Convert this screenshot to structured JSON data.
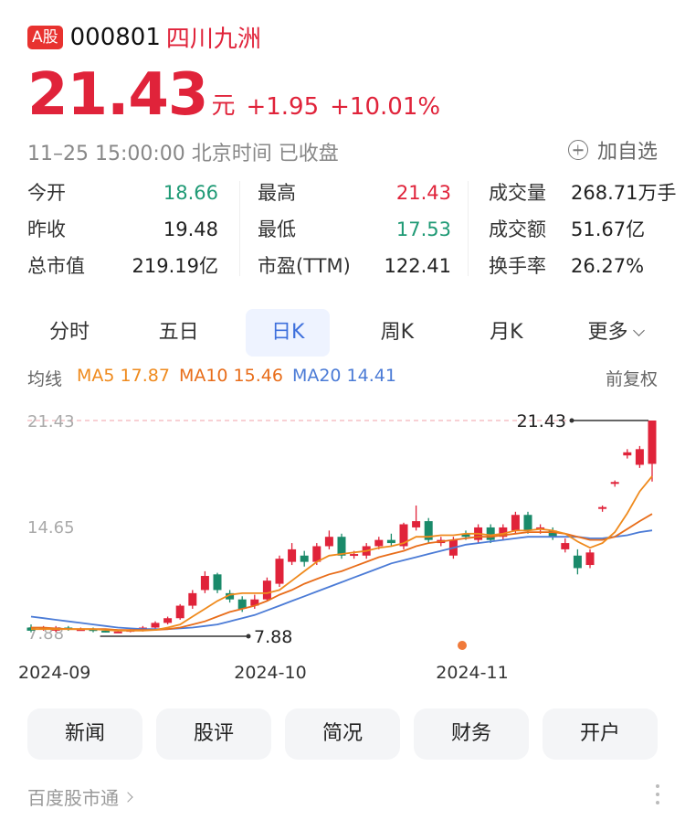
{
  "header": {
    "market_badge": "A股",
    "code": "000801",
    "name": "四川九洲"
  },
  "quote": {
    "price": "21.43",
    "unit": "元",
    "change": "+1.95",
    "change_pct": "+10.01%"
  },
  "status": {
    "text": "11–25 15:00:00 北京时间 已收盘",
    "add_label": "加自选"
  },
  "stats": [
    {
      "label": "今开",
      "value": "18.66",
      "tone": "green"
    },
    {
      "label": "最高",
      "value": "21.43",
      "tone": "red"
    },
    {
      "label": "成交量",
      "value": "268.71万手",
      "tone": ""
    },
    {
      "label": "昨收",
      "value": "19.48",
      "tone": ""
    },
    {
      "label": "最低",
      "value": "17.53",
      "tone": "green"
    },
    {
      "label": "成交额",
      "value": "51.67亿",
      "tone": ""
    },
    {
      "label": "总市值",
      "value": "219.19亿",
      "tone": ""
    },
    {
      "label": "市盈(TTM)",
      "value": "122.41",
      "tone": ""
    },
    {
      "label": "换手率",
      "value": "26.27%",
      "tone": ""
    }
  ],
  "tabs": [
    "分时",
    "五日",
    "日K",
    "周K",
    "月K",
    "更多"
  ],
  "active_tab": "日K",
  "ma": {
    "label": "均线",
    "ma5": "MA5 17.87",
    "ma10": "MA10 15.46",
    "ma20": "MA20 14.41",
    "adjust": "前复权"
  },
  "chart_data": {
    "type": "candlestick",
    "y_labels": [
      "21.43",
      "14.65",
      "7.88"
    ],
    "x_labels": [
      "2024-09",
      "2024-10",
      "2024-11"
    ],
    "high_marker": "21.43",
    "low_marker": "7.88",
    "colors": {
      "up": "#e0233a",
      "down": "#1a8a6a",
      "ma5": "#ef8a1d",
      "ma10": "#e86d1a",
      "ma20": "#4b7bd6"
    },
    "candles": [
      {
        "o": 8.2,
        "c": 8.0,
        "h": 8.4,
        "l": 7.9
      },
      {
        "o": 8.1,
        "c": 8.2,
        "h": 8.3,
        "l": 8.0
      },
      {
        "o": 8.0,
        "c": 8.2,
        "h": 8.3,
        "l": 7.9
      },
      {
        "o": 8.2,
        "c": 8.1,
        "h": 8.3,
        "l": 8.0
      },
      {
        "o": 8.1,
        "c": 8.1,
        "h": 8.2,
        "l": 8.0
      },
      {
        "o": 8.1,
        "c": 8.0,
        "h": 8.2,
        "l": 7.9
      },
      {
        "o": 8.0,
        "c": 7.9,
        "h": 8.1,
        "l": 7.88
      },
      {
        "o": 7.95,
        "c": 7.95,
        "h": 8.0,
        "l": 7.88
      },
      {
        "o": 7.95,
        "c": 8.05,
        "h": 8.1,
        "l": 7.9
      },
      {
        "o": 8.0,
        "c": 8.2,
        "h": 8.3,
        "l": 7.95
      },
      {
        "o": 8.2,
        "c": 8.5,
        "h": 8.6,
        "l": 8.1
      },
      {
        "o": 8.5,
        "c": 8.8,
        "h": 8.9,
        "l": 8.4
      },
      {
        "o": 8.8,
        "c": 9.6,
        "h": 9.7,
        "l": 8.7
      },
      {
        "o": 9.6,
        "c": 10.4,
        "h": 10.6,
        "l": 9.4
      },
      {
        "o": 10.6,
        "c": 11.5,
        "h": 11.8,
        "l": 10.4
      },
      {
        "o": 11.6,
        "c": 10.6,
        "h": 11.7,
        "l": 10.4
      },
      {
        "o": 10.4,
        "c": 10.0,
        "h": 10.6,
        "l": 9.8
      },
      {
        "o": 10.0,
        "c": 9.4,
        "h": 10.2,
        "l": 9.2
      },
      {
        "o": 9.6,
        "c": 10.0,
        "h": 10.3,
        "l": 9.4
      },
      {
        "o": 10.0,
        "c": 11.2,
        "h": 11.4,
        "l": 9.9
      },
      {
        "o": 11.0,
        "c": 12.6,
        "h": 12.8,
        "l": 10.8
      },
      {
        "o": 12.4,
        "c": 13.2,
        "h": 13.6,
        "l": 12.2
      },
      {
        "o": 12.8,
        "c": 12.4,
        "h": 13.1,
        "l": 12.1
      },
      {
        "o": 12.4,
        "c": 13.4,
        "h": 13.6,
        "l": 12.2
      },
      {
        "o": 13.4,
        "c": 14.0,
        "h": 14.4,
        "l": 13.2
      },
      {
        "o": 14.0,
        "c": 12.8,
        "h": 14.2,
        "l": 12.6
      },
      {
        "o": 12.8,
        "c": 12.9,
        "h": 13.1,
        "l": 12.6
      },
      {
        "o": 12.8,
        "c": 13.4,
        "h": 13.6,
        "l": 12.6
      },
      {
        "o": 13.4,
        "c": 13.8,
        "h": 14.0,
        "l": 13.2
      },
      {
        "o": 13.8,
        "c": 13.6,
        "h": 14.2,
        "l": 13.4
      },
      {
        "o": 13.4,
        "c": 14.8,
        "h": 14.9,
        "l": 13.2
      },
      {
        "o": 14.6,
        "c": 15.0,
        "h": 16.0,
        "l": 14.4
      },
      {
        "o": 15.0,
        "c": 13.8,
        "h": 15.2,
        "l": 13.6
      },
      {
        "o": 13.6,
        "c": 13.8,
        "h": 14.0,
        "l": 13.4
      },
      {
        "o": 12.8,
        "c": 13.8,
        "h": 14.0,
        "l": 12.6
      },
      {
        "o": 14.2,
        "c": 14.0,
        "h": 14.4,
        "l": 13.8
      },
      {
        "o": 13.8,
        "c": 14.6,
        "h": 14.8,
        "l": 13.6
      },
      {
        "o": 14.6,
        "c": 13.8,
        "h": 14.8,
        "l": 13.6
      },
      {
        "o": 14.0,
        "c": 14.6,
        "h": 14.8,
        "l": 13.8
      },
      {
        "o": 14.4,
        "c": 15.4,
        "h": 15.6,
        "l": 14.2
      },
      {
        "o": 15.4,
        "c": 14.4,
        "h": 15.6,
        "l": 14.2
      },
      {
        "o": 14.6,
        "c": 14.6,
        "h": 14.8,
        "l": 14.2
      },
      {
        "o": 14.4,
        "c": 14.0,
        "h": 14.6,
        "l": 13.8
      },
      {
        "o": 13.2,
        "c": 13.6,
        "h": 13.9,
        "l": 13.0
      },
      {
        "o": 12.8,
        "c": 12.0,
        "h": 13.2,
        "l": 11.6
      },
      {
        "o": 12.2,
        "c": 13.0,
        "h": 13.2,
        "l": 12.0
      },
      {
        "o": 15.8,
        "c": 15.9,
        "h": 16.0,
        "l": 15.6
      },
      {
        "o": 17.4,
        "c": 17.5,
        "h": 17.6,
        "l": 17.2
      },
      {
        "o": 19.2,
        "c": 19.4,
        "h": 19.6,
        "l": 19.0
      },
      {
        "o": 18.6,
        "c": 19.6,
        "h": 19.8,
        "l": 18.4
      },
      {
        "o": 18.66,
        "c": 21.43,
        "h": 21.43,
        "l": 17.53
      }
    ],
    "ma5": [
      8.1,
      8.1,
      8.1,
      8.1,
      8.1,
      8.1,
      8.05,
      8.0,
      8.0,
      8.0,
      8.05,
      8.2,
      8.4,
      8.9,
      9.4,
      9.9,
      10.3,
      10.4,
      10.4,
      10.4,
      10.6,
      11.2,
      11.8,
      12.4,
      12.8,
      12.9,
      13.0,
      13.1,
      13.3,
      13.4,
      13.6,
      14.0,
      14.0,
      14.1,
      14.1,
      14.2,
      14.2,
      14.1,
      14.2,
      14.4,
      14.4,
      14.5,
      14.4,
      14.2,
      13.7,
      13.3,
      13.6,
      14.3,
      15.5,
      16.9,
      17.87
    ],
    "ma10": [
      8.2,
      8.2,
      8.15,
      8.1,
      8.1,
      8.1,
      8.1,
      8.05,
      8.05,
      8.05,
      8.05,
      8.1,
      8.2,
      8.4,
      8.6,
      8.9,
      9.2,
      9.4,
      9.6,
      9.9,
      10.3,
      10.6,
      11.0,
      11.3,
      11.6,
      11.8,
      12.1,
      12.4,
      12.7,
      12.9,
      13.1,
      13.4,
      13.6,
      13.7,
      13.8,
      13.9,
      14.0,
      14.0,
      14.1,
      14.2,
      14.3,
      14.3,
      14.3,
      14.2,
      14.0,
      13.8,
      13.8,
      14.0,
      14.5,
      15.0,
      15.46
    ],
    "ma20": [
      8.9,
      8.8,
      8.7,
      8.6,
      8.5,
      8.4,
      8.3,
      8.2,
      8.15,
      8.1,
      8.1,
      8.1,
      8.15,
      8.2,
      8.3,
      8.4,
      8.6,
      8.8,
      9.0,
      9.3,
      9.6,
      9.9,
      10.2,
      10.5,
      10.8,
      11.1,
      11.4,
      11.7,
      12.0,
      12.3,
      12.5,
      12.7,
      12.9,
      13.1,
      13.3,
      13.5,
      13.6,
      13.7,
      13.8,
      13.9,
      14.0,
      14.0,
      14.0,
      14.0,
      14.0,
      13.9,
      13.9,
      14.0,
      14.1,
      14.3,
      14.41
    ]
  },
  "buttons": [
    "新闻",
    "股评",
    "简况",
    "财务",
    "开户"
  ],
  "footer": {
    "text": "百度股市通"
  }
}
